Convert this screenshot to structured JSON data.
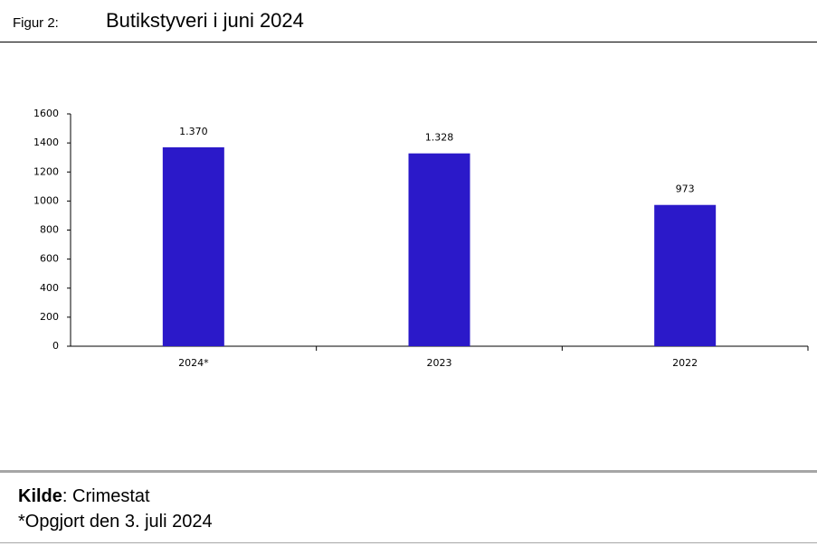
{
  "header": {
    "label": "Figur 2:",
    "title": "Butikstyveri i juni 2024"
  },
  "chart_data": {
    "type": "bar",
    "categories": [
      "2024*",
      "2023",
      "2022"
    ],
    "values": [
      1370,
      1328,
      973
    ],
    "value_labels": [
      "1.370",
      "1.328",
      "973"
    ],
    "color": "#2b19c9",
    "ylim": [
      0,
      1600
    ],
    "yticks": [
      0,
      200,
      400,
      600,
      800,
      1000,
      1200,
      1400,
      1600
    ],
    "grid": false
  },
  "footer": {
    "source_label": "Kilde",
    "source": ": Crimestat",
    "note": "*Opgjort den 3. juli 2024"
  }
}
